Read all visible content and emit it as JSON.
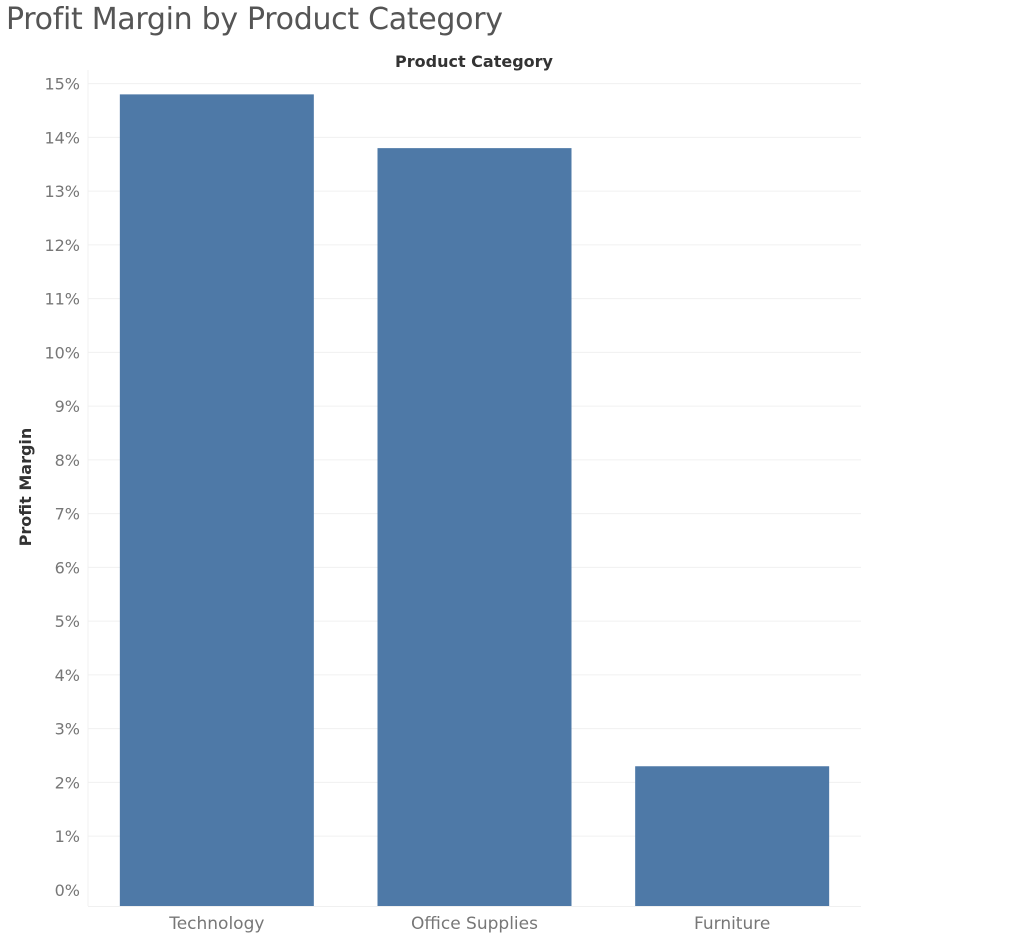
{
  "chart_data": {
    "type": "bar",
    "title": "Profit Margin by Product Category",
    "xlabel": "Product Category",
    "ylabel": "Profit Margin",
    "categories": [
      "Technology",
      "Office Supplies",
      "Furniture"
    ],
    "values": [
      14.8,
      13.8,
      2.3
    ],
    "y_unit": "%",
    "ylim": [
      0,
      15
    ],
    "y_ticks": [
      0,
      1,
      2,
      3,
      4,
      5,
      6,
      7,
      8,
      9,
      10,
      11,
      12,
      13,
      14,
      15
    ],
    "x_axis_title_position": "top",
    "grid": true,
    "legend": "none",
    "colors": {
      "bar": "#4e79a7",
      "grid": "#f0f0f0",
      "tick_label": "#777777",
      "axis_title": "#333333",
      "title": "#555555"
    }
  }
}
